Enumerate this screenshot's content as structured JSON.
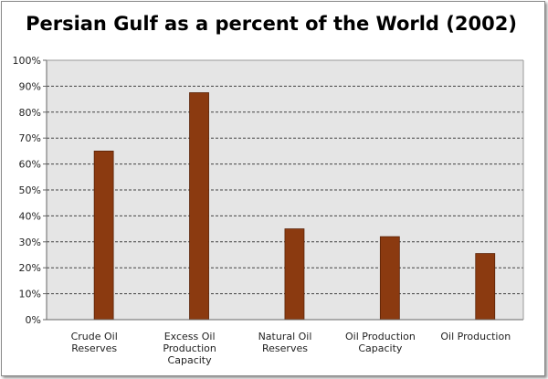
{
  "chart_data": {
    "type": "bar",
    "title": "Persian Gulf as a percent of the World (2002)",
    "categories": [
      [
        "Crude Oil",
        "Reserves"
      ],
      [
        "Excess Oil",
        "Production",
        "Capacity"
      ],
      [
        "Natural Oil",
        "Reserves"
      ],
      [
        "Oil Production",
        "Capacity"
      ],
      [
        "Oil Production"
      ]
    ],
    "values": [
      65,
      87.5,
      35,
      32,
      25.5
    ],
    "ylim": [
      0,
      100
    ],
    "yticks": [
      "0%",
      "10%",
      "20%",
      "30%",
      "40%",
      "50%",
      "60%",
      "70%",
      "80%",
      "90%",
      "100%"
    ],
    "xlabel": "",
    "ylabel": "",
    "grid": true,
    "colors": {
      "bar": "#8b3a10",
      "plot_bg": "#e5e5e5",
      "grid": "#444444"
    }
  }
}
